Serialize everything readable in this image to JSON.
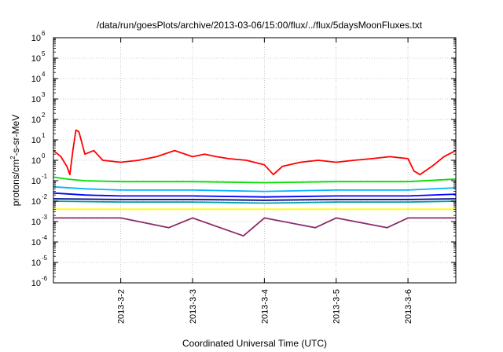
{
  "chart_data": {
    "type": "line",
    "title": "/data/run/goesPlots/archive/2013-03-06/15:00/flux/../flux/5daysMoonFluxes.txt",
    "xlabel": "Coordinated Universal Time (UTC)",
    "ylabel": "protons/cm²-s-sr-MeV",
    "ylabel_parts": {
      "pre": "protons/cm",
      "sup": "2",
      "post": "-s-sr-MeV"
    },
    "yscale": "log",
    "ylim": [
      1e-06,
      1000000.0
    ],
    "xlim": [
      "2013-03-01 01:30",
      "2013-03-06 16:00"
    ],
    "grid": true,
    "y_ticks": [
      {
        "value": 1e-06,
        "base": "10",
        "exp": "-6"
      },
      {
        "value": 1e-05,
        "base": "10",
        "exp": "-5"
      },
      {
        "value": 0.0001,
        "base": "10",
        "exp": "-4"
      },
      {
        "value": 0.001,
        "base": "10",
        "exp": "-3"
      },
      {
        "value": 0.01,
        "base": "10",
        "exp": "-2"
      },
      {
        "value": 0.1,
        "base": "10",
        "exp": "-1"
      },
      {
        "value": 1.0,
        "base": "10",
        "exp": "0"
      },
      {
        "value": 10.0,
        "base": "10",
        "exp": "1"
      },
      {
        "value": 100.0,
        "base": "10",
        "exp": "2"
      },
      {
        "value": 1000.0,
        "base": "10",
        "exp": "3"
      },
      {
        "value": 10000.0,
        "base": "10",
        "exp": "4"
      },
      {
        "value": 100000.0,
        "base": "10",
        "exp": "5"
      },
      {
        "value": 1000000.0,
        "base": "10",
        "exp": "6"
      }
    ],
    "x_ticks": [
      {
        "value": "2013-03-02 00:00",
        "label": "2013-3-2"
      },
      {
        "value": "2013-03-03 00:00",
        "label": "2013-3-3"
      },
      {
        "value": "2013-03-04 00:00",
        "label": "2013-3-4"
      },
      {
        "value": "2013-03-05 00:00",
        "label": "2013-3-5"
      },
      {
        "value": "2013-03-06 00:00",
        "label": "2013-3-6"
      }
    ],
    "series": [
      {
        "color": "#ff0000",
        "x": [
          "2013-03-01 01:30",
          "2013-03-01 04:00",
          "2013-03-01 06:00",
          "2013-03-01 07:00",
          "2013-03-01 08:00",
          "2013-03-01 09:00",
          "2013-03-01 10:00",
          "2013-03-01 12:00",
          "2013-03-01 15:00",
          "2013-03-01 18:00",
          "2013-03-02 00:00",
          "2013-03-02 06:00",
          "2013-03-02 12:00",
          "2013-03-02 18:00",
          "2013-03-03 00:00",
          "2013-03-03 04:00",
          "2013-03-03 08:00",
          "2013-03-03 12:00",
          "2013-03-03 18:00",
          "2013-03-04 00:00",
          "2013-03-04 03:00",
          "2013-03-04 06:00",
          "2013-03-04 12:00",
          "2013-03-04 18:00",
          "2013-03-05 00:00",
          "2013-03-05 06:00",
          "2013-03-05 12:00",
          "2013-03-05 18:00",
          "2013-03-06 00:00",
          "2013-03-06 02:00",
          "2013-03-06 04:00",
          "2013-03-06 08:00",
          "2013-03-06 12:00",
          "2013-03-06 16:00"
        ],
        "y": [
          3,
          1.5,
          0.5,
          0.2,
          3,
          30,
          25,
          2,
          3,
          1,
          0.8,
          1,
          1.5,
          3,
          1.5,
          2,
          1.5,
          1.2,
          1,
          0.6,
          0.2,
          0.5,
          0.8,
          1,
          0.8,
          1,
          1.2,
          1.5,
          1.2,
          0.3,
          0.2,
          0.5,
          1.5,
          3
        ]
      },
      {
        "color": "#00e000",
        "x": [
          "2013-03-01 01:30",
          "2013-03-01 06:00",
          "2013-03-01 12:00",
          "2013-03-02 00:00",
          "2013-03-03 00:00",
          "2013-03-04 00:00",
          "2013-03-05 00:00",
          "2013-03-06 00:00",
          "2013-03-06 16:00"
        ],
        "y": [
          0.15,
          0.12,
          0.1,
          0.09,
          0.09,
          0.08,
          0.09,
          0.09,
          0.12
        ]
      },
      {
        "color": "#00b4ff",
        "x": [
          "2013-03-01 01:30",
          "2013-03-01 12:00",
          "2013-03-02 00:00",
          "2013-03-03 00:00",
          "2013-03-04 00:00",
          "2013-03-05 00:00",
          "2013-03-06 00:00",
          "2013-03-06 16:00"
        ],
        "y": [
          0.05,
          0.04,
          0.035,
          0.035,
          0.03,
          0.035,
          0.035,
          0.045
        ]
      },
      {
        "color": "#0000ff",
        "x": [
          "2013-03-01 01:30",
          "2013-03-01 12:00",
          "2013-03-02 00:00",
          "2013-03-03 00:00",
          "2013-03-04 00:00",
          "2013-03-05 00:00",
          "2013-03-06 00:00",
          "2013-03-06 16:00"
        ],
        "y": [
          0.025,
          0.02,
          0.018,
          0.018,
          0.016,
          0.018,
          0.018,
          0.022
        ]
      },
      {
        "color": "#00a0a0",
        "x": [
          "2013-03-01 01:30",
          "2013-03-02 00:00",
          "2013-03-03 00:00",
          "2013-03-04 00:00",
          "2013-03-05 00:00",
          "2013-03-06 00:00",
          "2013-03-06 16:00"
        ],
        "y": [
          0.01,
          0.009,
          0.009,
          0.008,
          0.009,
          0.009,
          0.01
        ]
      },
      {
        "color": "#00008b",
        "x": [
          "2013-03-01 01:30",
          "2013-03-02 00:00",
          "2013-03-03 00:00",
          "2013-03-04 00:00",
          "2013-03-05 00:00",
          "2013-03-06 00:00",
          "2013-03-06 16:00"
        ],
        "y": [
          0.013,
          0.012,
          0.012,
          0.011,
          0.012,
          0.012,
          0.013
        ]
      },
      {
        "color": "#ffff00",
        "x": [
          "2013-03-01 01:30",
          "2013-03-02 00:00",
          "2013-03-03 00:00",
          "2013-03-04 00:00",
          "2013-03-05 00:00",
          "2013-03-06 00:00",
          "2013-03-06 16:00"
        ],
        "y": [
          0.004,
          0.004,
          0.004,
          0.004,
          0.004,
          0.004,
          0.004
        ]
      },
      {
        "color": "#8b2b6b",
        "x": [
          "2013-03-01 01:30",
          "2013-03-02 00:00",
          "2013-03-02 16:00",
          "2013-03-03 00:00",
          "2013-03-03 17:00",
          "2013-03-04 00:00",
          "2013-03-04 17:00",
          "2013-03-05 00:00",
          "2013-03-05 17:00",
          "2013-03-06 00:00",
          "2013-03-06 16:00"
        ],
        "y": [
          0.0015,
          0.0015,
          0.0005,
          0.0015,
          0.0002,
          0.0015,
          0.0005,
          0.0015,
          0.0005,
          0.0015,
          0.0015
        ]
      }
    ]
  }
}
